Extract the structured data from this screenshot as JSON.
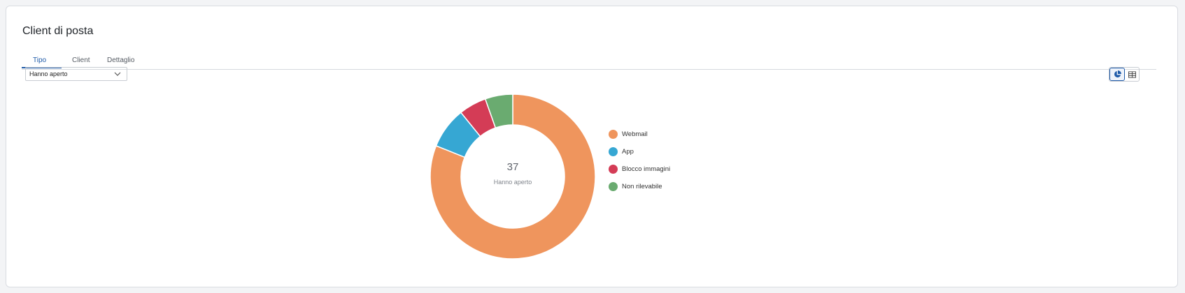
{
  "card": {
    "title": "Client di posta"
  },
  "tabs": [
    {
      "label": "Tipo",
      "active": true
    },
    {
      "label": "Client",
      "active": false
    },
    {
      "label": "Dettaglio",
      "active": false
    }
  ],
  "filter": {
    "selected": "Hanno aperto"
  },
  "view_toggle": {
    "options": [
      "pie-chart-icon",
      "table-icon"
    ],
    "active": "pie-chart-icon"
  },
  "chart_data": {
    "type": "pie",
    "style": "donut",
    "center_value": "37",
    "center_label": "Hanno aperto",
    "categories": [
      "Webmail",
      "App",
      "Blocco immagini",
      "Non rilevabile"
    ],
    "values": [
      30,
      3,
      2,
      2
    ],
    "colors": [
      "#ef955d",
      "#36a7d3",
      "#d43c56",
      "#6aab70"
    ],
    "legend_position": "right"
  }
}
